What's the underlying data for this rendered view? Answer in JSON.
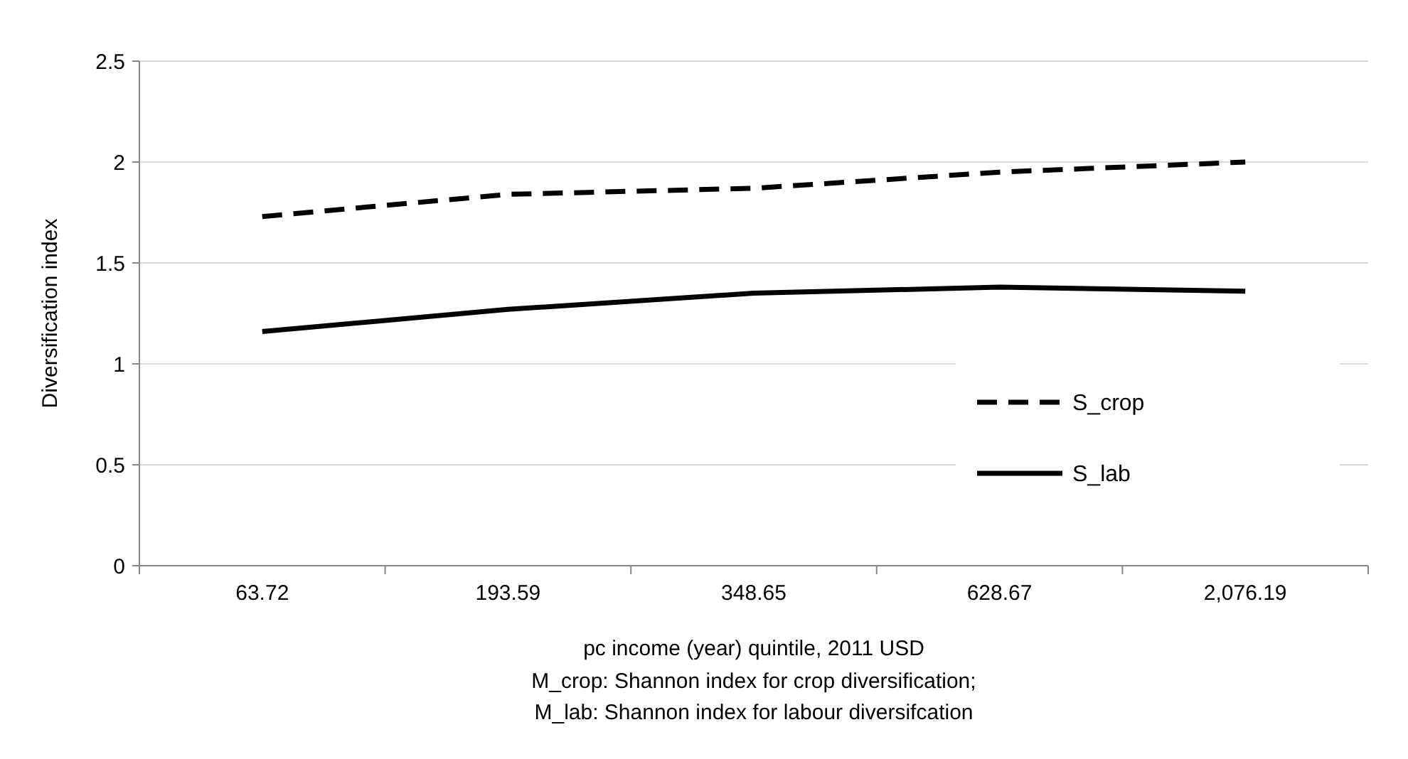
{
  "chart_data": {
    "type": "line",
    "ylabel": "Diversification index",
    "xlabel": "pc income (year) quintile, 2011 USD",
    "annotations": [
      "M_crop: Shannon index for crop diversification;",
      "M_lab: Shannon index for labour diversifcation"
    ],
    "categories": [
      "63.72",
      "193.59",
      "348.65",
      "628.67",
      "2,076.19"
    ],
    "series": [
      {
        "name": "S_crop",
        "color": "#000000",
        "line_style": "dashed",
        "values": [
          1.73,
          1.84,
          1.87,
          1.95,
          2.0
        ]
      },
      {
        "name": "S_lab",
        "color": "#000000",
        "line_style": "solid",
        "values": [
          1.16,
          1.27,
          1.35,
          1.38,
          1.36
        ]
      }
    ],
    "ylim": [
      0,
      2.5
    ],
    "yticks": [
      0,
      0.5,
      1,
      1.5,
      2,
      2.5
    ],
    "grid": "y",
    "legend": "bottom right",
    "marker": "none"
  }
}
